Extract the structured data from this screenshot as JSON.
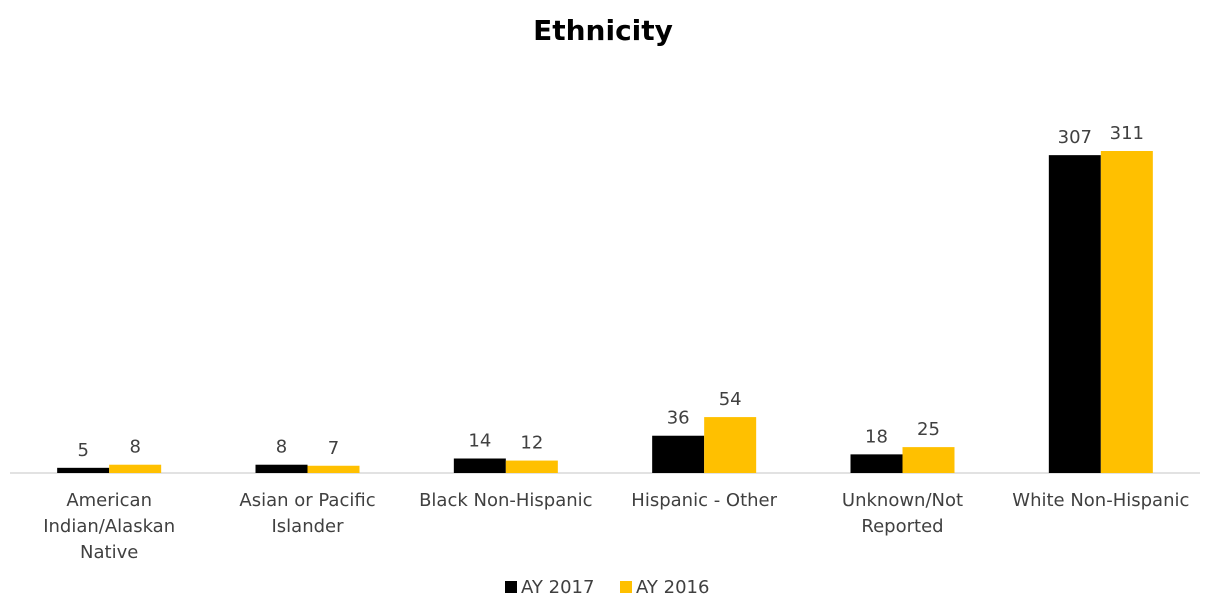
{
  "chart_data": {
    "type": "bar",
    "title": "Ethnicity",
    "xlabel": "",
    "ylabel": "",
    "ylim": [
      0,
      330
    ],
    "grid": false,
    "legend_position": "bottom",
    "categories": [
      "American Indian/Alaskan Native",
      "Asian or Pacific Islander",
      "Black Non-Hispanic",
      "Hispanic - Other",
      "Unknown/Not Reported",
      "White Non-Hispanic"
    ],
    "category_lines": [
      [
        "American",
        "Indian/Alaskan",
        "Native"
      ],
      [
        "Asian or Pacific",
        "Islander"
      ],
      [
        "Black Non-Hispanic"
      ],
      [
        "Hispanic - Other"
      ],
      [
        "Unknown/Not",
        "Reported"
      ],
      [
        "White Non-Hispanic"
      ]
    ],
    "series": [
      {
        "name": "AY 2017",
        "color": "#000000",
        "values": [
          5,
          8,
          14,
          36,
          18,
          307
        ]
      },
      {
        "name": "AY 2016",
        "color": "#FFC000",
        "values": [
          8,
          7,
          12,
          54,
          25,
          311
        ]
      }
    ]
  }
}
